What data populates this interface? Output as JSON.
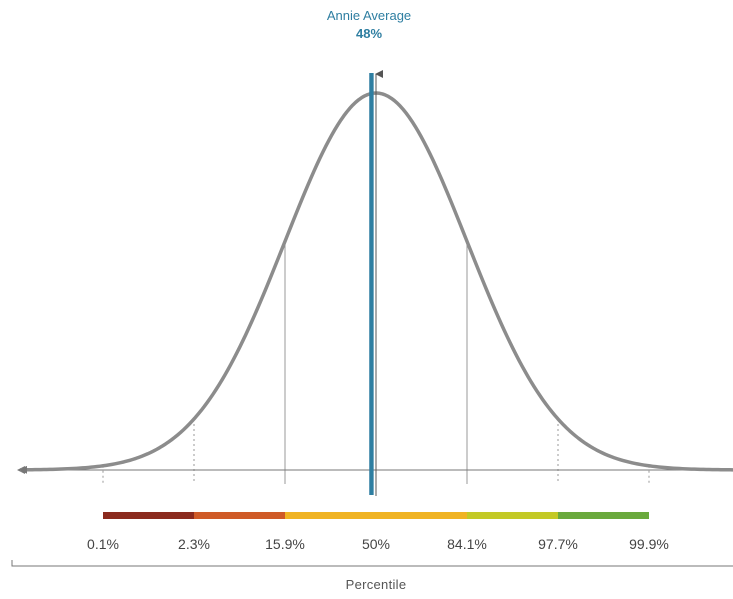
{
  "chart_data": {
    "type": "line",
    "title": "",
    "xlabel": "Percentile",
    "ylabel": "",
    "grid": false,
    "legend": "none",
    "distribution": "normal",
    "x_sigma_range": [
      -4,
      4
    ],
    "marker": {
      "label": "Annie Average",
      "value_label": "48%",
      "percentile": 48
    },
    "percentile_ticks": [
      {
        "label": "0.1%",
        "sigma": -3,
        "line_style": "dotted"
      },
      {
        "label": "2.3%",
        "sigma": -2,
        "line_style": "dotted"
      },
      {
        "label": "15.9%",
        "sigma": -1,
        "line_style": "solid"
      },
      {
        "label": "50%",
        "sigma": 0,
        "line_style": "none"
      },
      {
        "label": "84.1%",
        "sigma": 1,
        "line_style": "solid"
      },
      {
        "label": "97.7%",
        "sigma": 2,
        "line_style": "dotted"
      },
      {
        "label": "99.9%",
        "sigma": 3,
        "line_style": "dotted"
      }
    ],
    "color_bands": [
      {
        "from_sigma": -3,
        "to_sigma": -2,
        "color": "#8b2a1e"
      },
      {
        "from_sigma": -2,
        "to_sigma": -1,
        "color": "#cf5a27"
      },
      {
        "from_sigma": -1,
        "to_sigma": 1,
        "color": "#f0b323"
      },
      {
        "from_sigma": 1,
        "to_sigma": 2,
        "color": "#c3c925"
      },
      {
        "from_sigma": 2,
        "to_sigma": 3,
        "color": "#6aa93c"
      }
    ],
    "colors": {
      "curve": "#8c8c8c",
      "marker": "#2e7ea1",
      "axis": "#777777",
      "guide_lines": "#9a9a9a"
    }
  }
}
